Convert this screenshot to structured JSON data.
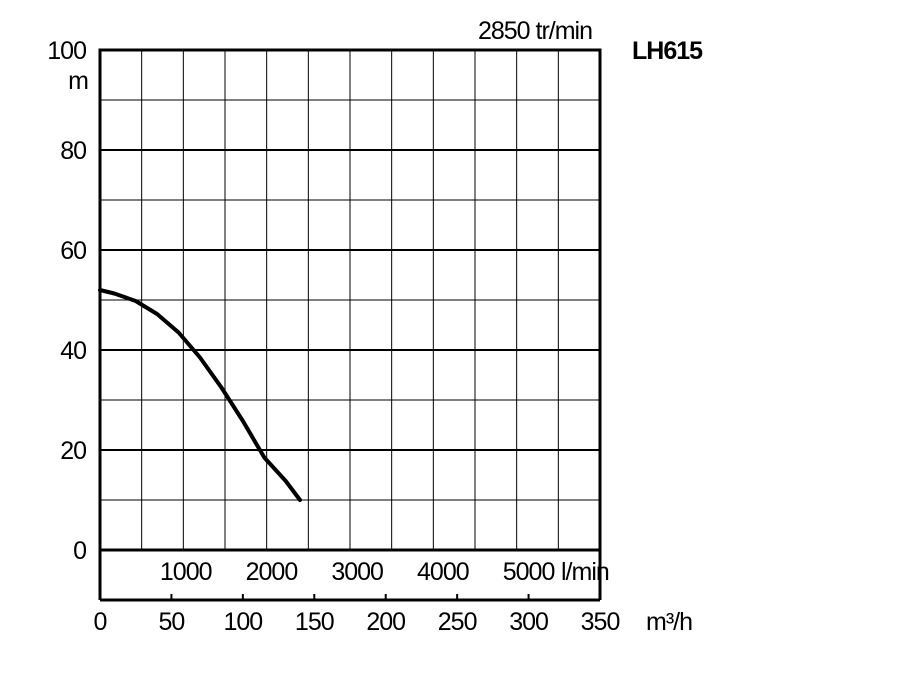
{
  "chart_data": {
    "type": "line",
    "title": "2850 tr/min",
    "model": "LH615",
    "ylabel": "m",
    "ylim": [
      0,
      100
    ],
    "y_ticks": [
      0,
      20,
      40,
      60,
      80,
      100
    ],
    "xlim_m3h": [
      0,
      350
    ],
    "x_ticks_m3h": [
      0,
      50,
      100,
      150,
      200,
      250,
      300,
      350
    ],
    "x_unit_m3h": "m³/h",
    "x_ticks_lmin": [
      1000,
      2000,
      3000,
      4000,
      5000
    ],
    "x_unit_lmin": "l/min",
    "grid": true,
    "series": [
      {
        "x": [
          0,
          10,
          25,
          40,
          55,
          70,
          85,
          100,
          115,
          130,
          140
        ],
        "values": [
          52,
          51.3,
          49.8,
          47.2,
          43.5,
          38.5,
          32.5,
          25.8,
          18.5,
          13.8,
          10
        ]
      }
    ]
  }
}
